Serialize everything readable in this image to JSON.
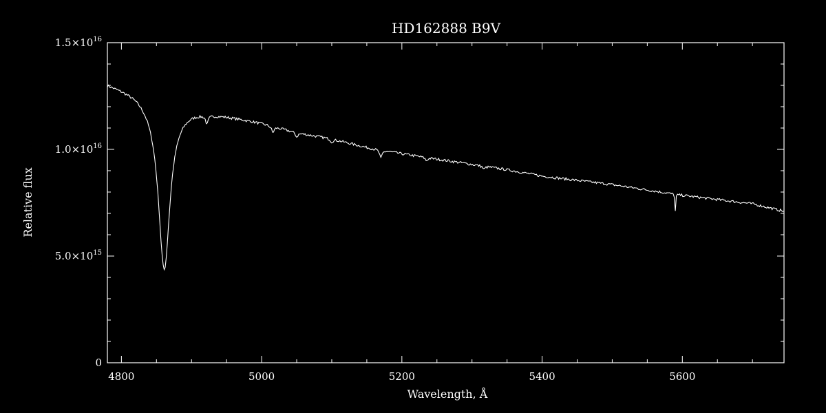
{
  "chart_data": {
    "type": "line",
    "title": "HD162888   B9V",
    "xlabel": "Wavelength, Å",
    "ylabel": "Relative flux",
    "xlim": [
      4780,
      5745
    ],
    "ylim": [
      0,
      1.5e+16
    ],
    "x_ticks": [
      {
        "value": 4800,
        "label": "4800"
      },
      {
        "value": 5000,
        "label": "5000"
      },
      {
        "value": 5200,
        "label": "5200"
      },
      {
        "value": 5400,
        "label": "5400"
      },
      {
        "value": 5600,
        "label": "5600"
      }
    ],
    "x_minor_step": 50,
    "y_ticks": [
      {
        "value": 0,
        "mantissa": "0",
        "exponent": ""
      },
      {
        "value": 5000000000000000.0,
        "mantissa": "5.0×10",
        "exponent": "15"
      },
      {
        "value": 1e+16,
        "mantissa": "1.0×10",
        "exponent": "16"
      },
      {
        "value": 1.5e+16,
        "mantissa": "1.5×10",
        "exponent": "16"
      }
    ],
    "y_minor_step": 1000000000000000.0,
    "grid": false,
    "background": "#000000",
    "line_color": "#ffffff",
    "series": [
      {
        "continuum": {
          "x": [
            4780,
            4800,
            4820,
            4840,
            4880,
            4900,
            4950,
            5000,
            5050,
            5100,
            5150,
            5200,
            5250,
            5300,
            5350,
            5400,
            5450,
            5500,
            5550,
            5600,
            5650,
            5700,
            5745
          ],
          "y": [
            1.31e+16,
            1.29e+16,
            1.27e+16,
            1.24e+16,
            1.195e+16,
            1.19e+16,
            1.16e+16,
            1.125e+16,
            1.08e+16,
            1.05e+16,
            1.01e+16,
            9800000000000000.0,
            9550000000000000.0,
            9300000000000000.0,
            9050000000000000.0,
            8750000000000000.0,
            8550000000000000.0,
            8350000000000000.0,
            8100000000000000.0,
            7850000000000000.0,
            7650000000000000.0,
            7450000000000000.0,
            7100000000000000.0
          ]
        },
        "lines": [
          {
            "center": 4861,
            "depth": 7800000000000000.0,
            "width": 10
          },
          {
            "center": 4922,
            "depth": 400000000000000.0,
            "width": 2
          },
          {
            "center": 5016,
            "depth": 300000000000000.0,
            "width": 2
          },
          {
            "center": 5050,
            "depth": 200000000000000.0,
            "width": 2
          },
          {
            "center": 5100,
            "depth": 150000000000000.0,
            "width": 2
          },
          {
            "center": 5170,
            "depth": 400000000000000.0,
            "width": 2
          },
          {
            "center": 5235,
            "depth": 150000000000000.0,
            "width": 2
          },
          {
            "center": 5317,
            "depth": 150000000000000.0,
            "width": 2
          },
          {
            "center": 5590,
            "depth": 800000000000000.0,
            "width": 0.6
          }
        ],
        "x_step": 1.5
      }
    ]
  }
}
